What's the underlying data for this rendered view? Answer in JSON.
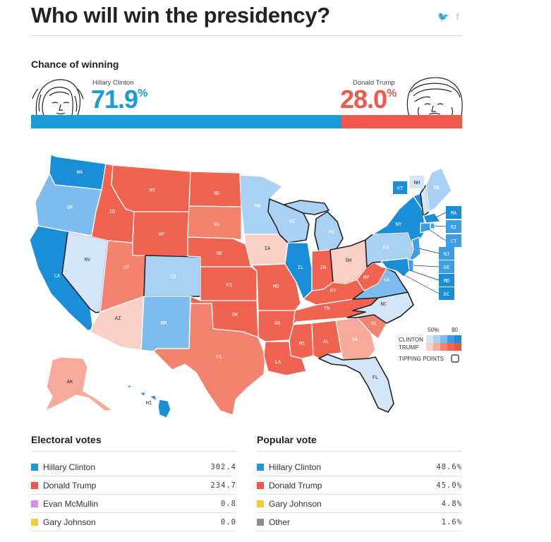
{
  "header": {
    "title": "Who will win the presidency?",
    "twitter_glyph": "🐦",
    "facebook_glyph": "f"
  },
  "chance": {
    "heading": "Chance of winning",
    "clinton": {
      "name": "Hillary Clinton",
      "pct": "71.9",
      "value": 71.9,
      "color": "#1b9bd8"
    },
    "trump": {
      "name": "Donald Trump",
      "pct": "28.0",
      "value": 28.0,
      "color": "#f0584c"
    },
    "pct_sign": "%"
  },
  "map": {
    "legend": {
      "low_label": "50%",
      "high_label": "90",
      "clinton_label": "CLINTON",
      "trump_label": "TRUMP",
      "tipping_label": "TIPPING POINTS"
    },
    "colors": {
      "d1": "#d3e6f7",
      "d2": "#a9d1f3",
      "d3": "#7dbcec",
      "d4": "#3d9ee3",
      "d5": "#1b8ed8",
      "r1": "#fbd0c6",
      "r2": "#f7aa99",
      "r3": "#f3826f",
      "r4": "#ef6350",
      "r5": "#ec5640"
    }
  },
  "chart_data": {
    "type": "map",
    "states": [
      {
        "abbr": "WA",
        "lean": "d5"
      },
      {
        "abbr": "OR",
        "lean": "d3"
      },
      {
        "abbr": "CA",
        "lean": "d5"
      },
      {
        "abbr": "NV",
        "lean": "d1",
        "tipping": true
      },
      {
        "abbr": "ID",
        "lean": "r4"
      },
      {
        "abbr": "MT",
        "lean": "r4"
      },
      {
        "abbr": "WY",
        "lean": "r4"
      },
      {
        "abbr": "UT",
        "lean": "r3"
      },
      {
        "abbr": "AZ",
        "lean": "r1"
      },
      {
        "abbr": "CO",
        "lean": "d2",
        "tipping": true
      },
      {
        "abbr": "NM",
        "lean": "d3"
      },
      {
        "abbr": "ND",
        "lean": "r4"
      },
      {
        "abbr": "SD",
        "lean": "r3"
      },
      {
        "abbr": "NE",
        "lean": "r4"
      },
      {
        "abbr": "KS",
        "lean": "r4"
      },
      {
        "abbr": "OK",
        "lean": "r4"
      },
      {
        "abbr": "TX",
        "lean": "r3"
      },
      {
        "abbr": "MN",
        "lean": "d2"
      },
      {
        "abbr": "IA",
        "lean": "r1"
      },
      {
        "abbr": "MO",
        "lean": "r4"
      },
      {
        "abbr": "AR",
        "lean": "r4"
      },
      {
        "abbr": "LA",
        "lean": "r4"
      },
      {
        "abbr": "WI",
        "lean": "d2",
        "tipping": true
      },
      {
        "abbr": "IL",
        "lean": "d5"
      },
      {
        "abbr": "MI",
        "lean": "d2",
        "tipping": true
      },
      {
        "abbr": "IN",
        "lean": "r4"
      },
      {
        "abbr": "OH",
        "lean": "r1",
        "tipping": true
      },
      {
        "abbr": "KY",
        "lean": "r4"
      },
      {
        "abbr": "TN",
        "lean": "r4"
      },
      {
        "abbr": "MS",
        "lean": "r4"
      },
      {
        "abbr": "AL",
        "lean": "r4"
      },
      {
        "abbr": "GA",
        "lean": "r2"
      },
      {
        "abbr": "FL",
        "lean": "d1",
        "tipping": true
      },
      {
        "abbr": "SC",
        "lean": "r3"
      },
      {
        "abbr": "NC",
        "lean": "d1",
        "tipping": true
      },
      {
        "abbr": "VA",
        "lean": "d3",
        "tipping": true
      },
      {
        "abbr": "WV",
        "lean": "r4"
      },
      {
        "abbr": "PA",
        "lean": "d2",
        "tipping": true
      },
      {
        "abbr": "NY",
        "lean": "d5"
      },
      {
        "abbr": "VT",
        "lean": "d5"
      },
      {
        "abbr": "NH",
        "lean": "d1",
        "tipping": true
      },
      {
        "abbr": "ME",
        "lean": "d2"
      },
      {
        "abbr": "MA",
        "lean": "d5"
      },
      {
        "abbr": "RI",
        "lean": "d4"
      },
      {
        "abbr": "CT",
        "lean": "d4"
      },
      {
        "abbr": "NJ",
        "lean": "d4"
      },
      {
        "abbr": "DE",
        "lean": "d4"
      },
      {
        "abbr": "MD",
        "lean": "d5"
      },
      {
        "abbr": "DC",
        "lean": "d5"
      },
      {
        "abbr": "AK",
        "lean": "r2"
      },
      {
        "abbr": "HI",
        "lean": "d5"
      }
    ]
  },
  "electoral": {
    "heading": "Electoral votes",
    "rows": [
      {
        "name": "Hillary Clinton",
        "value": "302.4",
        "color": "#1b9bd8"
      },
      {
        "name": "Donald Trump",
        "value": "234.7",
        "color": "#f0584c"
      },
      {
        "name": "Evan McMullin",
        "value": "0.8",
        "color": "#d98ee6"
      },
      {
        "name": "Gary Johnson",
        "value": "0.0",
        "color": "#f4cc3c"
      }
    ]
  },
  "popular": {
    "heading": "Popular vote",
    "rows": [
      {
        "name": "Hillary Clinton",
        "value": "48.6%",
        "color": "#1b9bd8"
      },
      {
        "name": "Donald Trump",
        "value": "45.0%",
        "color": "#f0584c"
      },
      {
        "name": "Gary Johnson",
        "value": "4.8%",
        "color": "#f4cc3c"
      },
      {
        "name": "Other",
        "value": "1.6%",
        "color": "#8e8e8e"
      }
    ]
  }
}
